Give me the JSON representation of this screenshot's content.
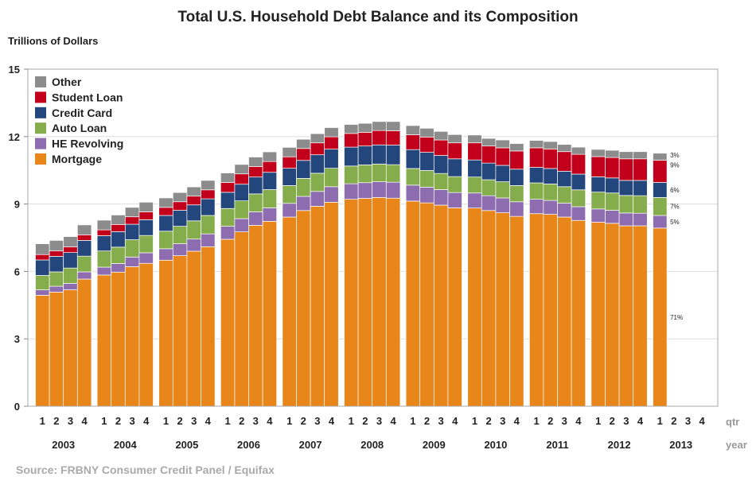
{
  "chart_data": {
    "type": "bar",
    "stacked": true,
    "title": "Total U.S. Household Debt Balance and its Composition",
    "ylabel": "Trillions of Dollars",
    "ylim": [
      0,
      15
    ],
    "yticks": [
      "0",
      "3",
      "6",
      "9",
      "12",
      "15"
    ],
    "grid": true,
    "legend_position": "top-left",
    "x_axis_name_quarter": "qtr",
    "x_axis_name_year": "year",
    "years": [
      "2003",
      "2004",
      "2005",
      "2006",
      "2007",
      "2008",
      "2009",
      "2010",
      "2011",
      "2012",
      "2013"
    ],
    "quarter_labels": [
      "1",
      "2",
      "3",
      "4"
    ],
    "categories": [
      "2003 Q1",
      "2003 Q2",
      "2003 Q3",
      "2003 Q4",
      "2004 Q1",
      "2004 Q2",
      "2004 Q3",
      "2004 Q4",
      "2005 Q1",
      "2005 Q2",
      "2005 Q3",
      "2005 Q4",
      "2006 Q1",
      "2006 Q2",
      "2006 Q3",
      "2006 Q4",
      "2007 Q1",
      "2007 Q2",
      "2007 Q3",
      "2007 Q4",
      "2008 Q1",
      "2008 Q2",
      "2008 Q3",
      "2008 Q4",
      "2009 Q1",
      "2009 Q2",
      "2009 Q3",
      "2009 Q4",
      "2010 Q1",
      "2010 Q2",
      "2010 Q3",
      "2010 Q4",
      "2011 Q1",
      "2011 Q2",
      "2011 Q3",
      "2011 Q4",
      "2012 Q1",
      "2012 Q2",
      "2012 Q3",
      "2012 Q4",
      "2013 Q1",
      "2013 Q2",
      "2013 Q3",
      "2013 Q4"
    ],
    "series": [
      {
        "name": "Mortgage",
        "color": "#e8861a",
        "values": [
          4.94,
          5.08,
          5.18,
          5.66,
          5.84,
          5.97,
          6.21,
          6.36,
          6.5,
          6.7,
          6.9,
          7.1,
          7.43,
          7.76,
          8.05,
          8.23,
          8.42,
          8.71,
          8.9,
          9.08,
          9.21,
          9.25,
          9.29,
          9.26,
          9.13,
          9.05,
          8.95,
          8.83,
          8.82,
          8.71,
          8.61,
          8.45,
          8.57,
          8.54,
          8.42,
          8.27,
          8.19,
          8.14,
          8.03,
          8.03,
          7.93,
          null,
          null,
          null
        ]
      },
      {
        "name": "HE Revolving",
        "color": "#8d6db0",
        "values": [
          0.24,
          0.26,
          0.29,
          0.32,
          0.35,
          0.38,
          0.43,
          0.47,
          0.51,
          0.53,
          0.54,
          0.57,
          0.58,
          0.59,
          0.6,
          0.6,
          0.61,
          0.63,
          0.66,
          0.69,
          0.69,
          0.7,
          0.7,
          0.71,
          0.71,
          0.7,
          0.69,
          0.68,
          0.67,
          0.66,
          0.66,
          0.65,
          0.64,
          0.62,
          0.62,
          0.61,
          0.59,
          0.58,
          0.57,
          0.56,
          0.56,
          null,
          null,
          null
        ]
      },
      {
        "name": "Auto Loan",
        "color": "#86ad4b",
        "values": [
          0.64,
          0.64,
          0.68,
          0.7,
          0.72,
          0.73,
          0.77,
          0.77,
          0.78,
          0.78,
          0.81,
          0.82,
          0.79,
          0.79,
          0.8,
          0.81,
          0.79,
          0.8,
          0.81,
          0.82,
          0.79,
          0.79,
          0.79,
          0.78,
          0.74,
          0.74,
          0.72,
          0.71,
          0.71,
          0.71,
          0.72,
          0.72,
          0.73,
          0.73,
          0.73,
          0.75,
          0.75,
          0.77,
          0.78,
          0.78,
          0.8,
          null,
          null,
          null
        ]
      },
      {
        "name": "Credit Card",
        "color": "#23477c",
        "values": [
          0.69,
          0.69,
          0.69,
          0.7,
          0.68,
          0.69,
          0.69,
          0.7,
          0.7,
          0.71,
          0.71,
          0.74,
          0.72,
          0.74,
          0.75,
          0.77,
          0.77,
          0.8,
          0.82,
          0.85,
          0.84,
          0.84,
          0.85,
          0.87,
          0.84,
          0.81,
          0.8,
          0.79,
          0.76,
          0.74,
          0.73,
          0.73,
          0.69,
          0.69,
          0.69,
          0.7,
          0.68,
          0.67,
          0.67,
          0.68,
          0.67,
          null,
          null,
          null
        ]
      },
      {
        "name": "Student Loan",
        "color": "#c2001b",
        "values": [
          0.24,
          0.24,
          0.25,
          0.25,
          0.26,
          0.32,
          0.33,
          0.35,
          0.36,
          0.38,
          0.39,
          0.4,
          0.44,
          0.46,
          0.47,
          0.48,
          0.51,
          0.53,
          0.53,
          0.55,
          0.61,
          0.61,
          0.64,
          0.64,
          0.66,
          0.68,
          0.69,
          0.71,
          0.76,
          0.76,
          0.78,
          0.81,
          0.87,
          0.87,
          0.87,
          0.88,
          0.9,
          0.91,
          0.96,
          0.96,
          0.99,
          null,
          null,
          null
        ]
      },
      {
        "name": "Other",
        "color": "#8c8c8c",
        "values": [
          0.48,
          0.47,
          0.46,
          0.44,
          0.43,
          0.42,
          0.42,
          0.43,
          0.42,
          0.41,
          0.41,
          0.42,
          0.42,
          0.42,
          0.42,
          0.43,
          0.42,
          0.41,
          0.41,
          0.41,
          0.4,
          0.4,
          0.4,
          0.41,
          0.41,
          0.39,
          0.38,
          0.37,
          0.35,
          0.34,
          0.35,
          0.33,
          0.33,
          0.33,
          0.32,
          0.32,
          0.32,
          0.32,
          0.32,
          0.32,
          0.31,
          null,
          null,
          null
        ]
      }
    ],
    "annotations": {
      "mortgage": "71%",
      "he_revolving": "5%",
      "auto_loan": "7%",
      "credit_card": "6%",
      "student_loan": "9%",
      "other": "3%"
    }
  },
  "source": "Source: FRBNY  Consumer Credit Panel / Equifax"
}
